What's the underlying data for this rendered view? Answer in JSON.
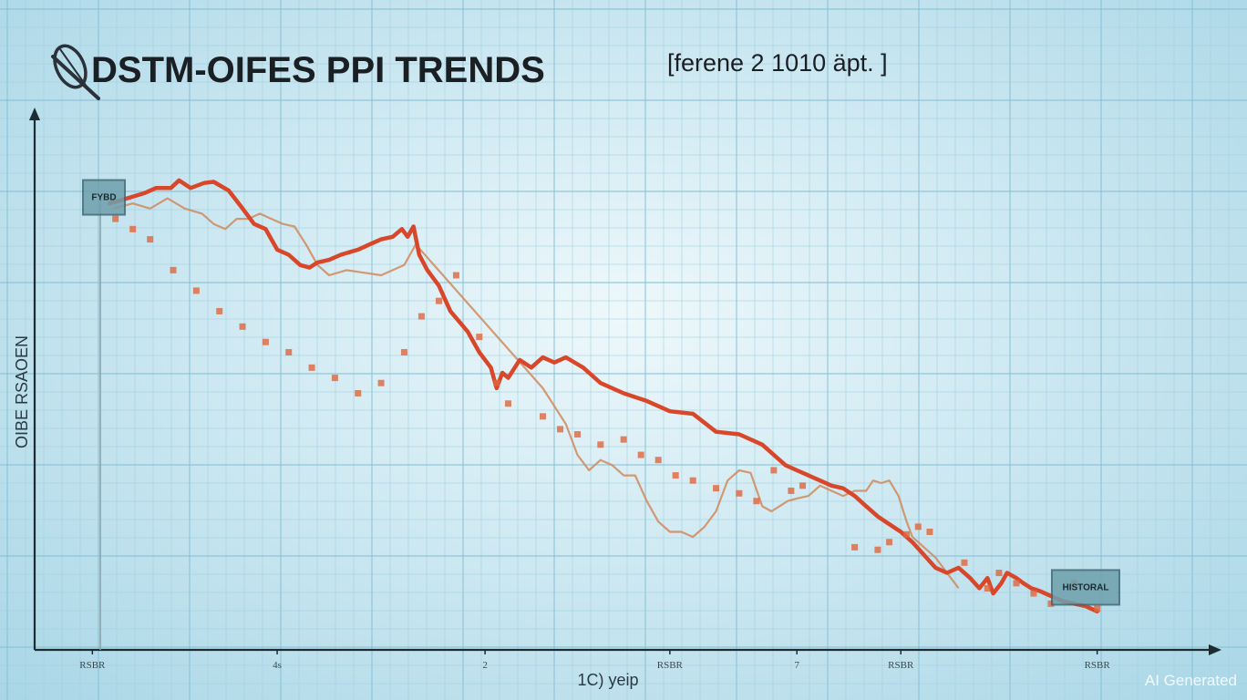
{
  "chart_data": {
    "type": "line",
    "title": "DSTM-OIFES PPI TRENDS",
    "subtitle": "[ferene 2 1010 äpt. ]",
    "ylabel": "OIBE RSAOEN",
    "xlabel": "1C) yeip",
    "xlim": [
      0,
      100
    ],
    "ylim": [
      0,
      100
    ],
    "x_ticks": [
      {
        "x": 5,
        "label": "RSBR"
      },
      {
        "x": 21,
        "label": "4s"
      },
      {
        "x": 39,
        "label": "2"
      },
      {
        "x": 55,
        "label": "RSBR"
      },
      {
        "x": 66,
        "label": "7"
      },
      {
        "x": 75,
        "label": "RSBR"
      },
      {
        "x": 92,
        "label": "RSBR"
      }
    ],
    "annotations": [
      {
        "label": "FYBD",
        "x": 6,
        "y": 88
      },
      {
        "label": "HISTORAL",
        "x": 91,
        "y": 12
      }
    ],
    "series": [
      {
        "name": "",
        "style": "main",
        "x": [
          6.5,
          8,
          9.5,
          10.5,
          11.8,
          12.5,
          13.5,
          14.7,
          15.5,
          16.8,
          18,
          19,
          20,
          21,
          22,
          23,
          23.8,
          24.5,
          25.5,
          26.5,
          28,
          29,
          30,
          31,
          31.8,
          32.3,
          32.8,
          33.3,
          34,
          35,
          36,
          37.5,
          38.5,
          39.5,
          40,
          40.5,
          41,
          42,
          43,
          44,
          45,
          46,
          47.5,
          49,
          51,
          53,
          55,
          57,
          59,
          61,
          63,
          64,
          65,
          66,
          67,
          68,
          69,
          70,
          71,
          72,
          73,
          74,
          75,
          76,
          77,
          78,
          79,
          80,
          81,
          81.8,
          82.5,
          83,
          83.7,
          84.2,
          85,
          85.6,
          86.3,
          87,
          88,
          89,
          90,
          91,
          92
        ],
        "y": [
          87,
          88,
          89,
          90,
          90,
          91.5,
          90,
          91,
          91.2,
          89.5,
          86,
          83,
          82,
          78,
          77,
          75,
          74.5,
          75.5,
          76,
          77,
          78,
          79,
          80,
          80.5,
          82,
          80.5,
          82.5,
          77,
          74,
          71,
          66,
          62,
          58,
          55,
          51,
          54,
          53,
          56.5,
          55,
          57,
          56,
          57,
          55,
          52,
          50,
          48.5,
          46.5,
          46,
          42.5,
          42,
          40,
          38,
          36,
          35,
          34,
          33,
          32,
          31.5,
          30,
          28,
          26,
          24.5,
          23,
          21,
          18.5,
          16,
          15,
          16,
          14,
          12,
          14,
          11,
          13,
          15,
          14,
          13,
          12,
          11.5,
          10.5,
          9.5,
          9,
          8.5,
          7.5
        ]
      },
      {
        "name": "",
        "style": "secondary",
        "x": [
          6.8,
          8.5,
          10,
          11.5,
          13,
          14.5,
          15.5,
          16.5,
          17.5,
          18.5,
          19.5,
          20.5,
          21.5,
          22.5,
          23.5,
          24.5,
          25.5,
          27,
          28.5,
          30,
          31,
          32,
          32.5,
          33,
          44,
          46,
          47,
          48,
          49,
          50,
          51,
          52,
          53,
          54,
          55,
          56,
          57,
          58,
          59,
          60,
          61,
          62,
          63,
          63.8,
          64.5,
          65.2,
          66,
          67,
          68,
          69,
          70,
          71,
          72,
          72.6,
          73.3,
          74,
          74.8,
          75.5,
          76,
          77,
          78,
          79,
          80
        ],
        "y": [
          86,
          87,
          86,
          88,
          86,
          85,
          83,
          82,
          84,
          84,
          85,
          84,
          83,
          82.5,
          79,
          75,
          73,
          74,
          73.5,
          73,
          74,
          75,
          77,
          79,
          51,
          44,
          38,
          35,
          37,
          36,
          34,
          34,
          29,
          25,
          23,
          23,
          22,
          24,
          27,
          33,
          35,
          34.5,
          28,
          27,
          28,
          29,
          29.5,
          30,
          32,
          31,
          30,
          31,
          31,
          33,
          32.5,
          33,
          30,
          25,
          22,
          20,
          18,
          15,
          12
        ]
      }
    ],
    "scatter": {
      "x": [
        7,
        8.5,
        10,
        12,
        14,
        16,
        18,
        20,
        22,
        24,
        26,
        28,
        30,
        32,
        33.5,
        35,
        36.5,
        38.5,
        40,
        41,
        44,
        45.5,
        47,
        49,
        51,
        52.5,
        54,
        55.5,
        57,
        59,
        61,
        62.5,
        64,
        65.5,
        66.5,
        71,
        73,
        74,
        75.5,
        76.5,
        77.5,
        80.5,
        82.5,
        83.5,
        85,
        86.5,
        88,
        90,
        92
      ],
      "y": [
        84,
        82,
        80,
        74,
        70,
        66,
        63,
        60,
        58,
        55,
        53,
        50,
        52,
        58,
        65,
        68,
        73,
        61,
        52,
        48,
        45.5,
        43,
        42,
        40,
        41,
        38,
        37,
        34,
        33,
        31.5,
        30.5,
        29,
        35,
        31,
        32,
        20,
        19.5,
        21,
        22.5,
        24,
        23,
        17,
        12,
        15,
        13,
        11,
        9,
        13,
        8
      ]
    }
  },
  "watermark": "AI Generated"
}
